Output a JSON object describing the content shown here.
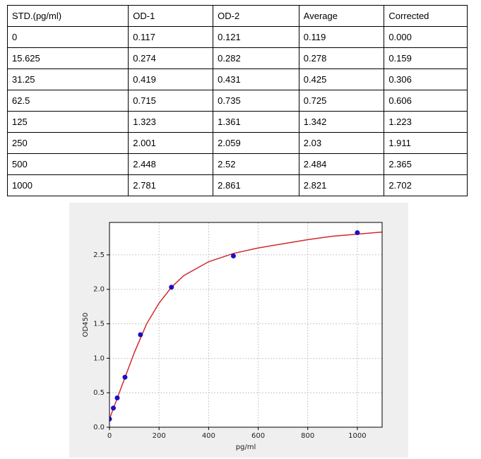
{
  "table": {
    "header": [
      "STD.(pg/ml)",
      "OD-1",
      "OD-2",
      "Average",
      "Corrected"
    ],
    "rows": [
      [
        "0",
        "0.117",
        "0.121",
        "0.119",
        "0.000"
      ],
      [
        "15.625",
        "0.274",
        "0.282",
        "0.278",
        "0.159"
      ],
      [
        "31.25",
        "0.419",
        "0.431",
        "0.425",
        "0.306"
      ],
      [
        "62.5",
        "0.715",
        "0.735",
        "0.725",
        "0.606"
      ],
      [
        "125",
        "1.323",
        "1.361",
        "1.342",
        "1.223"
      ],
      [
        "250",
        "2.001",
        "2.059",
        "2.03",
        "1.911"
      ],
      [
        "500",
        "2.448",
        "2.52",
        "2.484",
        "2.365"
      ],
      [
        "1000",
        "2.781",
        "2.861",
        "2.821",
        "2.702"
      ]
    ]
  },
  "chart_data": {
    "type": "scatter",
    "x_label": "pg/ml",
    "y_label": "OD450",
    "xlim": [
      0,
      1100
    ],
    "xticks": [
      0,
      200,
      400,
      600,
      800,
      1000
    ],
    "ylim": [
      0,
      2.97
    ],
    "yticks": [
      {
        "value": 0,
        "label": "0.0"
      },
      {
        "value": 0.5,
        "label": "0.5"
      },
      {
        "value": 1,
        "label": "1.0"
      },
      {
        "value": 1.5,
        "label": "1.5"
      },
      {
        "value": 2,
        "label": "2.0"
      },
      {
        "value": 2.5,
        "label": "2.5"
      }
    ],
    "grid": true,
    "series": [
      {
        "type": "line",
        "color": "#d02a2a",
        "x": [
          0,
          50,
          100,
          150,
          200,
          250,
          300,
          400,
          500,
          600,
          700,
          800,
          900,
          1000,
          1100
        ],
        "values": [
          0.12,
          0.6,
          1.08,
          1.5,
          1.8,
          2.03,
          2.2,
          2.4,
          2.52,
          2.6,
          2.66,
          2.72,
          2.77,
          2.8,
          2.83
        ]
      },
      {
        "type": "scatter",
        "color": "#1c0fc4",
        "x": [
          0,
          15.625,
          31.25,
          62.5,
          125,
          250,
          500,
          1000
        ],
        "values": [
          0.119,
          0.278,
          0.425,
          0.725,
          1.342,
          2.03,
          2.484,
          2.821
        ]
      }
    ]
  }
}
